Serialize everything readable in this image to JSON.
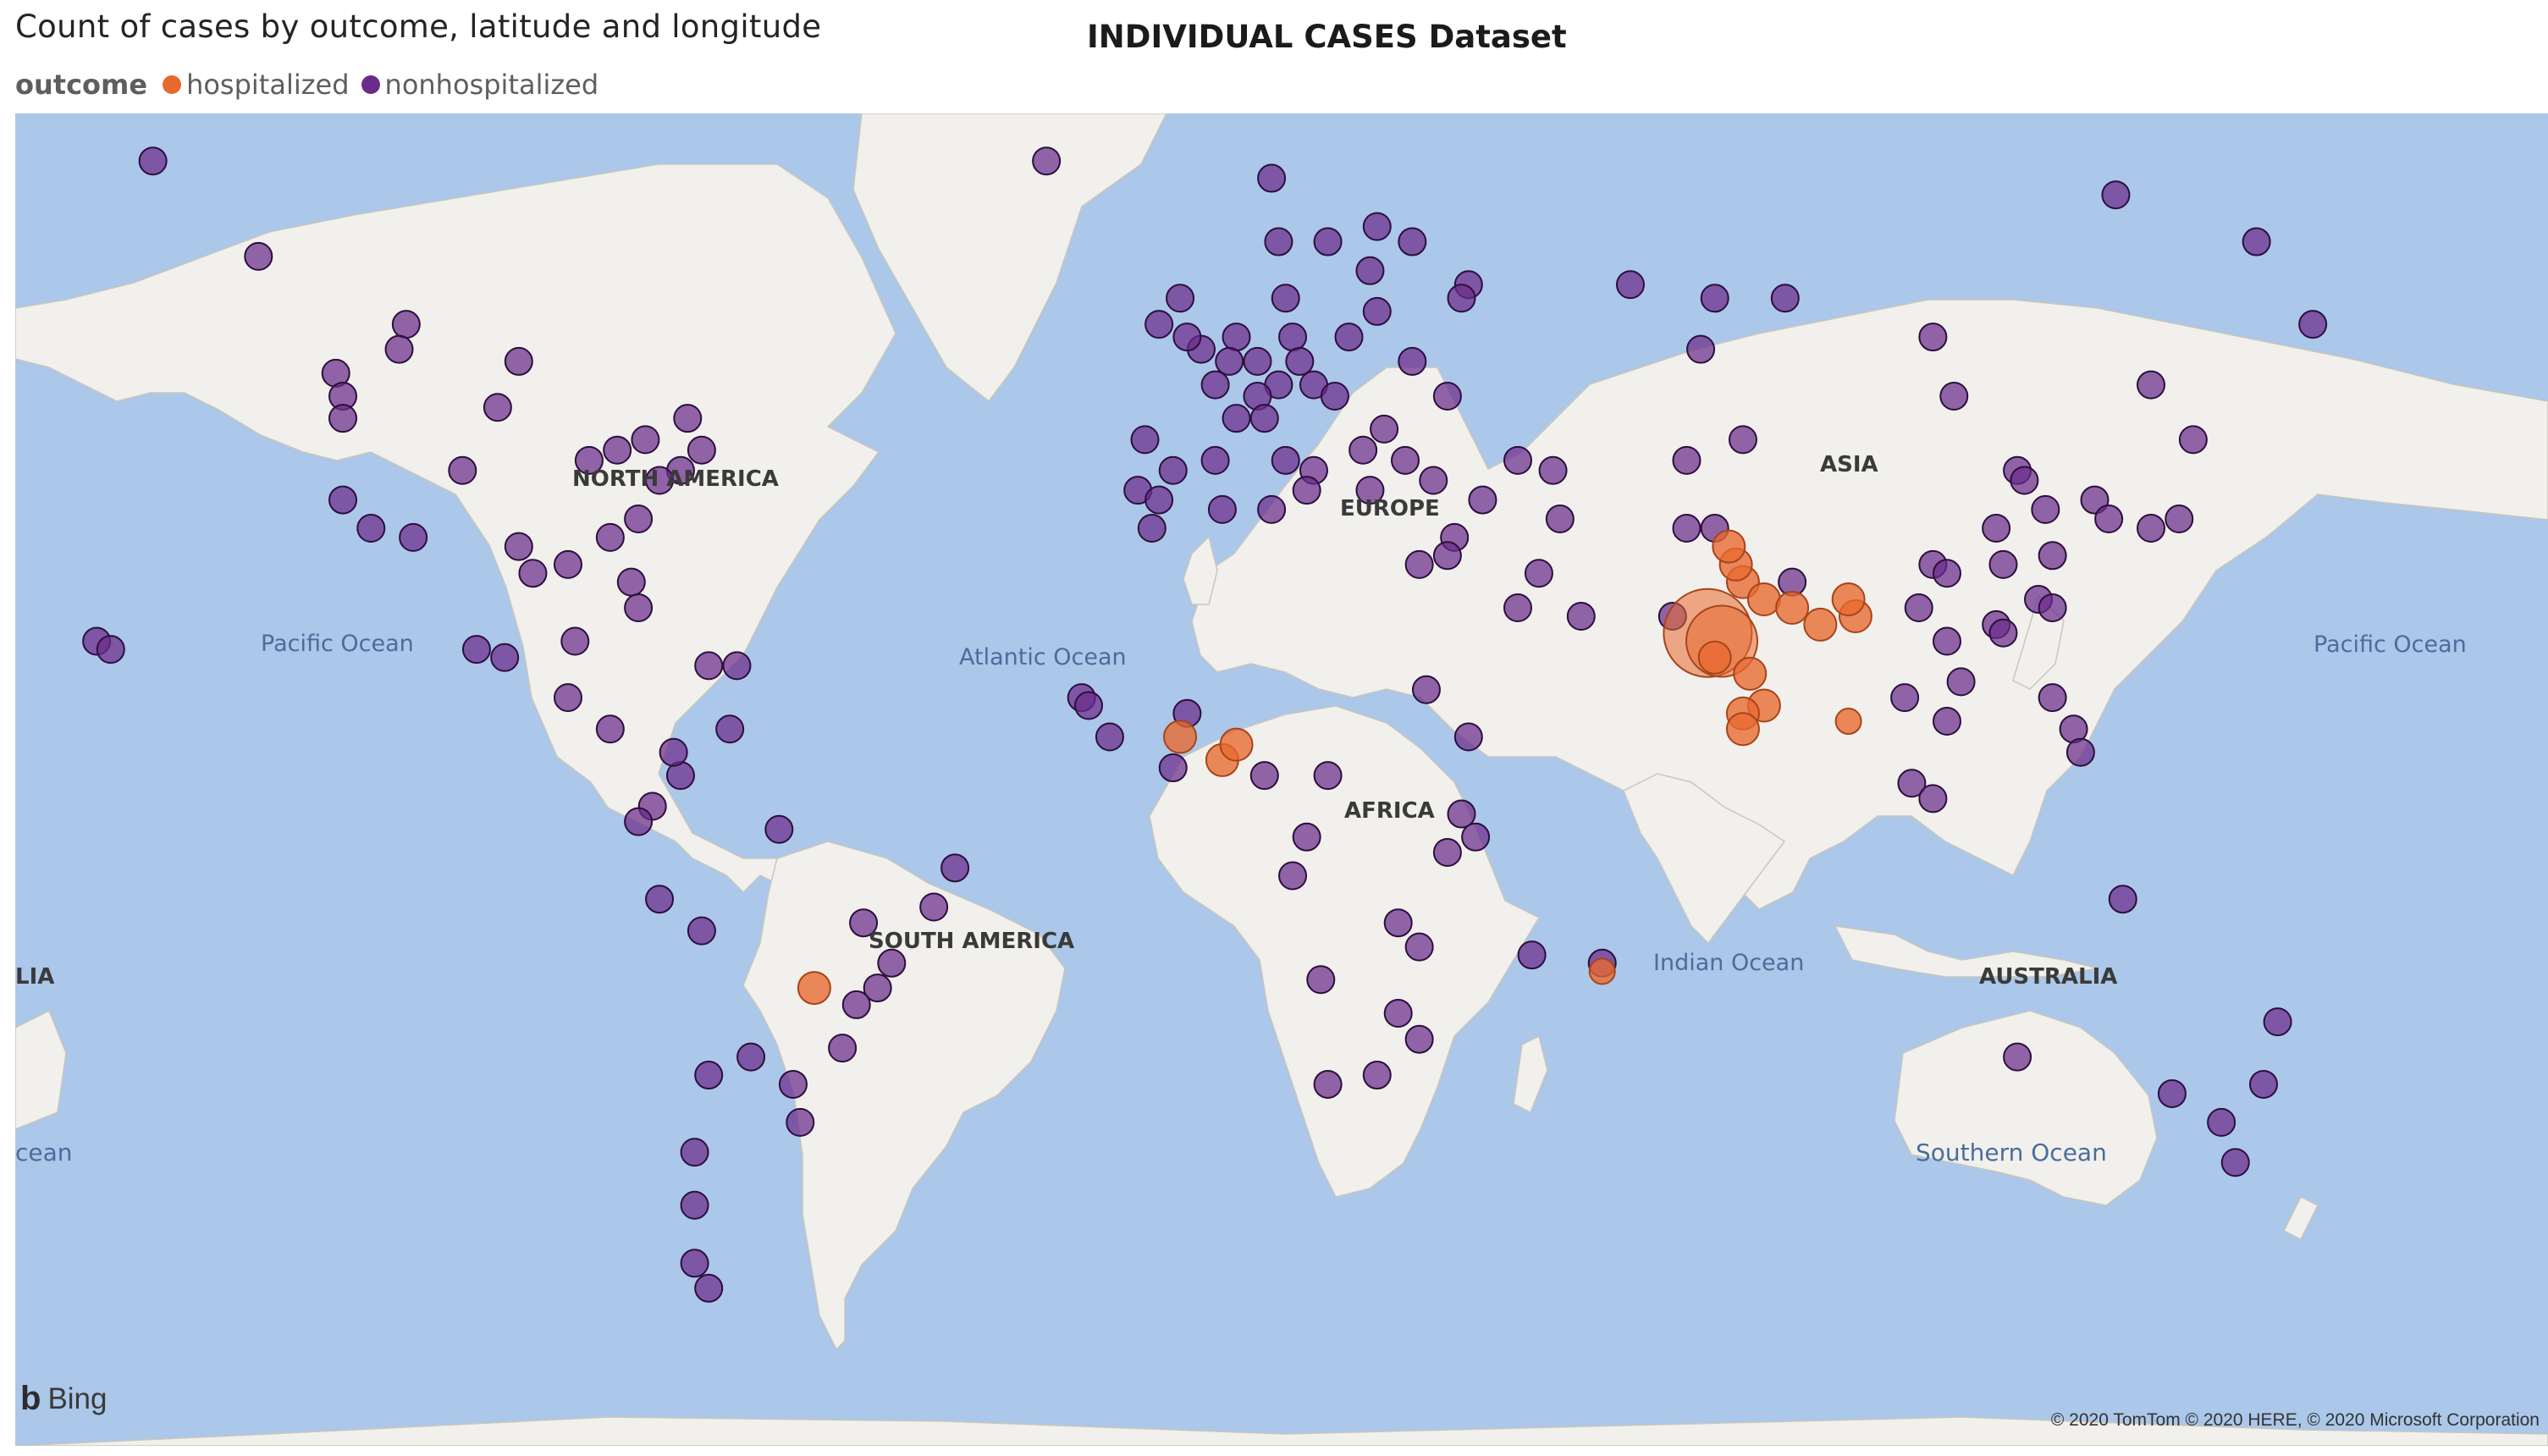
{
  "header": {
    "visual_title": "Count of cases by outcome, latitude and longitude",
    "dataset_title": "INDIVIDUAL CASES Dataset"
  },
  "legend": {
    "title": "outcome",
    "items": [
      {
        "label": "hospitalized",
        "color": "#e8692f"
      },
      {
        "label": "nonhospitalized",
        "color": "#6b2b8a"
      }
    ]
  },
  "map": {
    "colors": {
      "ocean": "#abc7e9",
      "land": "#f1f0ec",
      "hospitalized_fill": "#e8692f",
      "nonhospitalized_fill": "#6b2b8a"
    },
    "labels": {
      "continents": [
        "NORTH AMERICA",
        "EUROPE",
        "ASIA",
        "AFRICA",
        "SOUTH AMERICA",
        "AUSTRALIA",
        "LIA"
      ],
      "oceans": [
        "Pacific Ocean",
        "Atlantic Ocean",
        "Indian Ocean",
        "Pacific Ocean",
        "Southern Ocean",
        "cean"
      ]
    },
    "hospitalized_points": [
      {
        "lat": 22,
        "lon": 72,
        "size": "xl"
      },
      {
        "lat": 21,
        "lon": 74,
        "size": "l"
      },
      {
        "lat": 28,
        "lon": 77,
        "size": "m"
      },
      {
        "lat": 26,
        "lon": 80,
        "size": "m"
      },
      {
        "lat": 25,
        "lon": 84,
        "size": "m"
      },
      {
        "lat": 23,
        "lon": 88,
        "size": "m"
      },
      {
        "lat": 19,
        "lon": 73,
        "size": "m"
      },
      {
        "lat": 17,
        "lon": 78,
        "size": "m"
      },
      {
        "lat": 13,
        "lon": 80,
        "size": "m"
      },
      {
        "lat": 12,
        "lon": 77,
        "size": "m"
      },
      {
        "lat": 10,
        "lon": 77,
        "size": "m"
      },
      {
        "lat": 30,
        "lon": 76,
        "size": "m"
      },
      {
        "lat": 32,
        "lon": 75,
        "size": "m"
      },
      {
        "lat": 24,
        "lon": 93,
        "size": "m"
      },
      {
        "lat": 26,
        "lon": 92,
        "size": "m"
      },
      {
        "lat": 11,
        "lon": 92,
        "size": "s"
      },
      {
        "lat": 9,
        "lon": -3,
        "size": "m"
      },
      {
        "lat": 6,
        "lon": 3,
        "size": "m"
      },
      {
        "lat": 8,
        "lon": 5,
        "size": "m"
      },
      {
        "lat": -23,
        "lon": -55,
        "size": "m"
      },
      {
        "lat": -21,
        "lon": 57,
        "size": "s"
      }
    ],
    "nonhospitalized_points": [
      {
        "lat": 64,
        "lon": -149
      },
      {
        "lat": 58,
        "lon": -134
      },
      {
        "lat": 49,
        "lon": -123
      },
      {
        "lat": 47,
        "lon": -122
      },
      {
        "lat": 45,
        "lon": -122
      },
      {
        "lat": 40,
        "lon": -105
      },
      {
        "lat": 37,
        "lon": -122
      },
      {
        "lat": 34,
        "lon": -118
      },
      {
        "lat": 33,
        "lon": -112
      },
      {
        "lat": 32,
        "lon": -97
      },
      {
        "lat": 30,
        "lon": -90
      },
      {
        "lat": 29,
        "lon": -95
      },
      {
        "lat": 41,
        "lon": -87
      },
      {
        "lat": 42,
        "lon": -83
      },
      {
        "lat": 43,
        "lon": -79
      },
      {
        "lat": 45,
        "lon": -73
      },
      {
        "lat": 40,
        "lon": -74
      },
      {
        "lat": 39,
        "lon": -77
      },
      {
        "lat": 42,
        "lon": -71
      },
      {
        "lat": 35,
        "lon": -80
      },
      {
        "lat": 33,
        "lon": -84
      },
      {
        "lat": 28,
        "lon": -81
      },
      {
        "lat": 25,
        "lon": -80
      },
      {
        "lat": 19,
        "lon": -99
      },
      {
        "lat": 20,
        "lon": -103
      },
      {
        "lat": 21,
        "lon": -89
      },
      {
        "lat": 14,
        "lon": -90
      },
      {
        "lat": 10,
        "lon": -84
      },
      {
        "lat": 18,
        "lon": -66
      },
      {
        "lat": 18,
        "lon": -70
      },
      {
        "lat": 21,
        "lon": -157
      },
      {
        "lat": 20,
        "lon": -155
      },
      {
        "lat": 50,
        "lon": -97
      },
      {
        "lat": 53,
        "lon": -113
      },
      {
        "lat": 51,
        "lon": -114
      },
      {
        "lat": 46,
        "lon": -100
      },
      {
        "lat": 4,
        "lon": -74
      },
      {
        "lat": 7,
        "lon": -75
      },
      {
        "lat": 10,
        "lon": -67
      },
      {
        "lat": 0,
        "lon": -78
      },
      {
        "lat": -2,
        "lon": -80
      },
      {
        "lat": -12,
        "lon": -77
      },
      {
        "lat": -16,
        "lon": -71
      },
      {
        "lat": -3,
        "lon": -60
      },
      {
        "lat": -8,
        "lon": -35
      },
      {
        "lat": -13,
        "lon": -38
      },
      {
        "lat": -15,
        "lon": -48
      },
      {
        "lat": -20,
        "lon": -44
      },
      {
        "lat": -23,
        "lon": -46
      },
      {
        "lat": -25,
        "lon": -49
      },
      {
        "lat": -30,
        "lon": -51
      },
      {
        "lat": -34,
        "lon": -58
      },
      {
        "lat": -33,
        "lon": -70
      },
      {
        "lat": -31,
        "lon": -64
      },
      {
        "lat": -38,
        "lon": -57
      },
      {
        "lat": -41,
        "lon": -72
      },
      {
        "lat": -46,
        "lon": -72
      },
      {
        "lat": -51,
        "lon": -72
      },
      {
        "lat": -53,
        "lon": -70
      },
      {
        "lat": 64,
        "lon": -22
      },
      {
        "lat": 53,
        "lon": -6
      },
      {
        "lat": 55,
        "lon": -3
      },
      {
        "lat": 51,
        "lon": 0
      },
      {
        "lat": 52,
        "lon": -2
      },
      {
        "lat": 48,
        "lon": 2
      },
      {
        "lat": 45,
        "lon": 5
      },
      {
        "lat": 43,
        "lon": -8
      },
      {
        "lat": 40,
        "lon": -4
      },
      {
        "lat": 38,
        "lon": -9
      },
      {
        "lat": 37,
        "lon": -6
      },
      {
        "lat": 41,
        "lon": 2
      },
      {
        "lat": 52,
        "lon": 5
      },
      {
        "lat": 50,
        "lon": 4
      },
      {
        "lat": 52,
        "lon": 13
      },
      {
        "lat": 48,
        "lon": 11
      },
      {
        "lat": 50,
        "lon": 8
      },
      {
        "lat": 47,
        "lon": 8
      },
      {
        "lat": 45,
        "lon": 9
      },
      {
        "lat": 41,
        "lon": 12
      },
      {
        "lat": 40,
        "lon": 16
      },
      {
        "lat": 38,
        "lon": 15
      },
      {
        "lat": 48,
        "lon": 16
      },
      {
        "lat": 50,
        "lon": 14
      },
      {
        "lat": 52,
        "lon": 21
      },
      {
        "lat": 47,
        "lon": 19
      },
      {
        "lat": 44,
        "lon": 26
      },
      {
        "lat": 42,
        "lon": 23
      },
      {
        "lat": 38,
        "lon": 24
      },
      {
        "lat": 55,
        "lon": 12
      },
      {
        "lat": 59,
        "lon": 11
      },
      {
        "lat": 59,
        "lon": 18
      },
      {
        "lat": 60,
        "lon": 25
      },
      {
        "lat": 63,
        "lon": 10
      },
      {
        "lat": 57,
        "lon": 24
      },
      {
        "lat": 54,
        "lon": 25
      },
      {
        "lat": 56,
        "lon": 38
      },
      {
        "lat": 59,
        "lon": 30
      },
      {
        "lat": 55,
        "lon": 37
      },
      {
        "lat": 50,
        "lon": 30
      },
      {
        "lat": 47,
        "lon": 35
      },
      {
        "lat": 41,
        "lon": 29
      },
      {
        "lat": 39,
        "lon": 33
      },
      {
        "lat": 37,
        "lon": 40
      },
      {
        "lat": 33,
        "lon": 36
      },
      {
        "lat": 31,
        "lon": 35
      },
      {
        "lat": 30,
        "lon": 31
      },
      {
        "lat": 36,
        "lon": 10
      },
      {
        "lat": 34,
        "lon": -7
      },
      {
        "lat": 36,
        "lon": 3
      },
      {
        "lat": 25,
        "lon": 45
      },
      {
        "lat": 24,
        "lon": 54
      },
      {
        "lat": 29,
        "lon": 48
      },
      {
        "lat": 35,
        "lon": 51
      },
      {
        "lat": 41,
        "lon": 45
      },
      {
        "lat": 40,
        "lon": 50
      },
      {
        "lat": 56,
        "lon": 61
      },
      {
        "lat": 55,
        "lon": 73
      },
      {
        "lat": 55,
        "lon": 83
      },
      {
        "lat": 52,
        "lon": 104
      },
      {
        "lat": 48,
        "lon": 135
      },
      {
        "lat": 53,
        "lon": 158
      },
      {
        "lat": 62,
        "lon": 130
      },
      {
        "lat": 59,
        "lon": 150
      },
      {
        "lat": 51,
        "lon": 71
      },
      {
        "lat": 43,
        "lon": 77
      },
      {
        "lat": 41,
        "lon": 69
      },
      {
        "lat": 47,
        "lon": 107
      },
      {
        "lat": 40,
        "lon": 116
      },
      {
        "lat": 39,
        "lon": 117
      },
      {
        "lat": 36,
        "lon": 120
      },
      {
        "lat": 34,
        "lon": 113
      },
      {
        "lat": 31,
        "lon": 121
      },
      {
        "lat": 30,
        "lon": 114
      },
      {
        "lat": 30,
        "lon": 104
      },
      {
        "lat": 29,
        "lon": 106
      },
      {
        "lat": 26,
        "lon": 119
      },
      {
        "lat": 23,
        "lon": 113
      },
      {
        "lat": 22,
        "lon": 114
      },
      {
        "lat": 25,
        "lon": 102
      },
      {
        "lat": 37,
        "lon": 127
      },
      {
        "lat": 35,
        "lon": 129
      },
      {
        "lat": 35,
        "lon": 139
      },
      {
        "lat": 34,
        "lon": 135
      },
      {
        "lat": 43,
        "lon": 141
      },
      {
        "lat": 25,
        "lon": 121
      },
      {
        "lat": 21,
        "lon": 106
      },
      {
        "lat": 16,
        "lon": 108
      },
      {
        "lat": 14,
        "lon": 100
      },
      {
        "lat": 11,
        "lon": 106
      },
      {
        "lat": 14,
        "lon": 121
      },
      {
        "lat": 10,
        "lon": 124
      },
      {
        "lat": 7,
        "lon": 125
      },
      {
        "lat": 3,
        "lon": 101
      },
      {
        "lat": 1,
        "lon": 104
      },
      {
        "lat": 28,
        "lon": 84
      },
      {
        "lat": 24,
        "lon": 67
      },
      {
        "lat": 34,
        "lon": 69
      },
      {
        "lat": 34,
        "lon": 73
      },
      {
        "lat": 14,
        "lon": -17
      },
      {
        "lat": 13,
        "lon": -16
      },
      {
        "lat": 9,
        "lon": -13
      },
      {
        "lat": 5,
        "lon": -4
      },
      {
        "lat": 12,
        "lon": -2
      },
      {
        "lat": 4,
        "lon": 9
      },
      {
        "lat": 4,
        "lon": 18
      },
      {
        "lat": 15,
        "lon": 32
      },
      {
        "lat": 9,
        "lon": 38
      },
      {
        "lat": -1,
        "lon": 37
      },
      {
        "lat": -4,
        "lon": 39
      },
      {
        "lat": -6,
        "lon": 35
      },
      {
        "lat": -4,
        "lon": 15
      },
      {
        "lat": -9,
        "lon": 13
      },
      {
        "lat": -15,
        "lon": 28
      },
      {
        "lat": -18,
        "lon": 31
      },
      {
        "lat": -22,
        "lon": 17
      },
      {
        "lat": -26,
        "lon": 28
      },
      {
        "lat": -29,
        "lon": 31
      },
      {
        "lat": -34,
        "lon": 18
      },
      {
        "lat": -33,
        "lon": 25
      },
      {
        "lat": -19,
        "lon": 47
      },
      {
        "lat": -20,
        "lon": 57
      },
      {
        "lat": -31,
        "lon": 116
      },
      {
        "lat": -35,
        "lon": 138
      },
      {
        "lat": -38,
        "lon": 145
      },
      {
        "lat": -34,
        "lon": 151
      },
      {
        "lat": -27,
        "lon": 153
      },
      {
        "lat": -42,
        "lon": 147
      },
      {
        "lat": -12,
        "lon": 131
      }
    ]
  }
}
